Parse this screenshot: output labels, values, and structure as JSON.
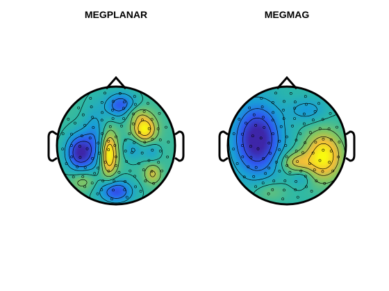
{
  "chart_data": [
    {
      "type": "heatmap",
      "title": "MEGPLANAR",
      "colormap": [
        "#3e26a8",
        "#2e5bf0",
        "#199ed7",
        "#2db8a6",
        "#8ac65d",
        "#f0bd3a",
        "#f9fb0e"
      ],
      "blobs": [
        {
          "cx": -0.62,
          "cy": 0.12,
          "sx": 0.16,
          "sy": 0.22,
          "a": -1.0
        },
        {
          "cx": 0.0,
          "cy": 0.78,
          "sx": 0.2,
          "sy": 0.14,
          "a": -0.8
        },
        {
          "cx": 0.08,
          "cy": -0.68,
          "sx": 0.18,
          "sy": 0.15,
          "a": -0.75
        },
        {
          "cx": -0.36,
          "cy": -0.1,
          "sx": 0.14,
          "sy": 0.38,
          "a": -0.45
        },
        {
          "cx": -0.12,
          "cy": 0.15,
          "sx": 0.1,
          "sy": 0.26,
          "a": 1.0
        },
        {
          "cx": 0.48,
          "cy": -0.28,
          "sx": 0.14,
          "sy": 0.16,
          "a": 0.95
        },
        {
          "cx": 0.62,
          "cy": 0.48,
          "sx": 0.1,
          "sy": 0.12,
          "a": 0.5
        },
        {
          "cx": 0.32,
          "cy": -0.55,
          "sx": 0.15,
          "sy": 0.1,
          "a": 0.3
        },
        {
          "cx": 0.3,
          "cy": 0.05,
          "sx": 0.12,
          "sy": 0.14,
          "a": -0.35
        },
        {
          "cx": -0.55,
          "cy": 0.6,
          "sx": 0.16,
          "sy": 0.12,
          "a": 0.35
        },
        {
          "cx": 0.6,
          "cy": 0.1,
          "sx": 0.1,
          "sy": 0.12,
          "a": -0.3
        }
      ],
      "base": 0.05,
      "range": [
        -1.0,
        1.0
      ],
      "levels": [
        -0.75,
        -0.5,
        -0.25,
        0.0,
        0.25,
        0.5,
        0.75
      ]
    },
    {
      "type": "heatmap",
      "title": "MEGMAG",
      "colormap": [
        "#3e26a8",
        "#2e5bf0",
        "#199ed7",
        "#2db8a6",
        "#8ac65d",
        "#f0bd3a",
        "#f9fb0e"
      ],
      "blobs": [
        {
          "cx": -0.5,
          "cy": -0.1,
          "sx": 0.28,
          "sy": 0.42,
          "a": -1.1
        },
        {
          "cx": 0.62,
          "cy": 0.18,
          "sx": 0.22,
          "sy": 0.28,
          "a": 1.0
        },
        {
          "cx": 0.15,
          "cy": 0.28,
          "sx": 0.18,
          "sy": 0.12,
          "a": 0.55
        },
        {
          "cx": 0.35,
          "cy": -0.6,
          "sx": 0.22,
          "sy": 0.14,
          "a": -0.35
        },
        {
          "cx": -0.3,
          "cy": 0.78,
          "sx": 0.2,
          "sy": 0.12,
          "a": 0.25
        },
        {
          "cx": 0.25,
          "cy": 0.55,
          "sx": 0.12,
          "sy": 0.1,
          "a": -0.25
        }
      ],
      "base": 0.0,
      "range": [
        -1.0,
        1.0
      ],
      "levels": [
        -0.75,
        -0.5,
        -0.25,
        0.0,
        0.25,
        0.5,
        0.75
      ]
    }
  ]
}
